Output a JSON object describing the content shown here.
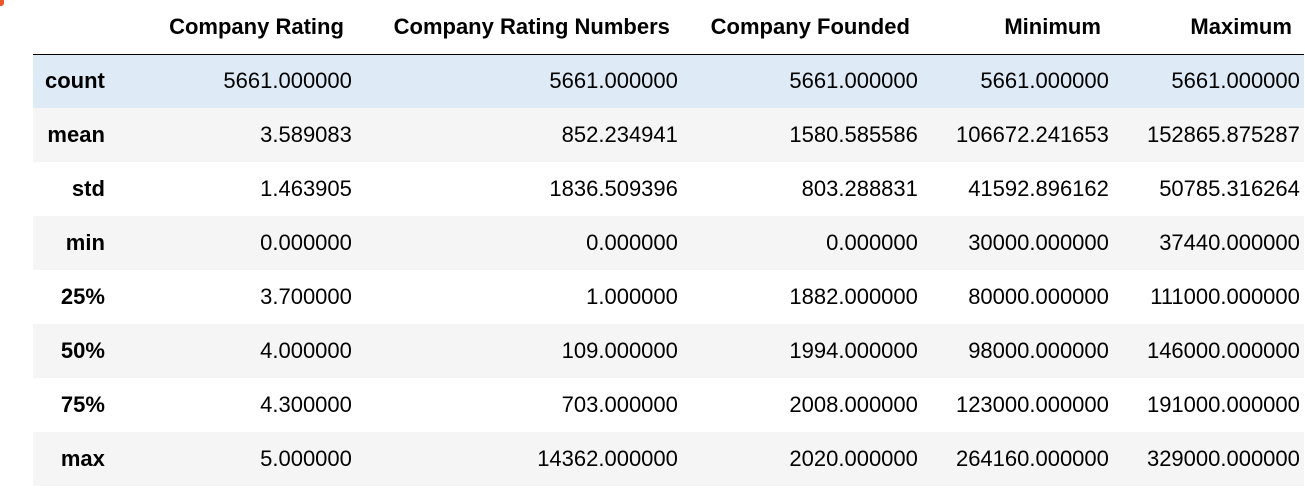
{
  "table": {
    "index_header": "",
    "columns": [
      "Company Rating",
      "Company Rating Numbers",
      "Company Founded",
      "Minimum",
      "Maximum"
    ],
    "rows": [
      {
        "label": "count",
        "values": [
          "5661.000000",
          "5661.000000",
          "5661.000000",
          "5661.000000",
          "5661.000000"
        ]
      },
      {
        "label": "mean",
        "values": [
          "3.589083",
          "852.234941",
          "1580.585586",
          "106672.241653",
          "152865.875287"
        ]
      },
      {
        "label": "std",
        "values": [
          "1.463905",
          "1836.509396",
          "803.288831",
          "41592.896162",
          "50785.316264"
        ]
      },
      {
        "label": "min",
        "values": [
          "0.000000",
          "0.000000",
          "0.000000",
          "30000.000000",
          "37440.000000"
        ]
      },
      {
        "label": "25%",
        "values": [
          "3.700000",
          "1.000000",
          "1882.000000",
          "80000.000000",
          "111000.000000"
        ]
      },
      {
        "label": "50%",
        "values": [
          "4.000000",
          "109.000000",
          "1994.000000",
          "98000.000000",
          "146000.000000"
        ]
      },
      {
        "label": "75%",
        "values": [
          "4.300000",
          "703.000000",
          "2008.000000",
          "123000.000000",
          "191000.000000"
        ]
      },
      {
        "label": "max",
        "values": [
          "5.000000",
          "14362.000000",
          "2020.000000",
          "264160.000000",
          "329000.000000"
        ]
      }
    ],
    "highlighted_row": "count",
    "colors": {
      "highlight": "#deebf7",
      "stripe": "#f5f5f5",
      "header_border": "#000000"
    }
  }
}
